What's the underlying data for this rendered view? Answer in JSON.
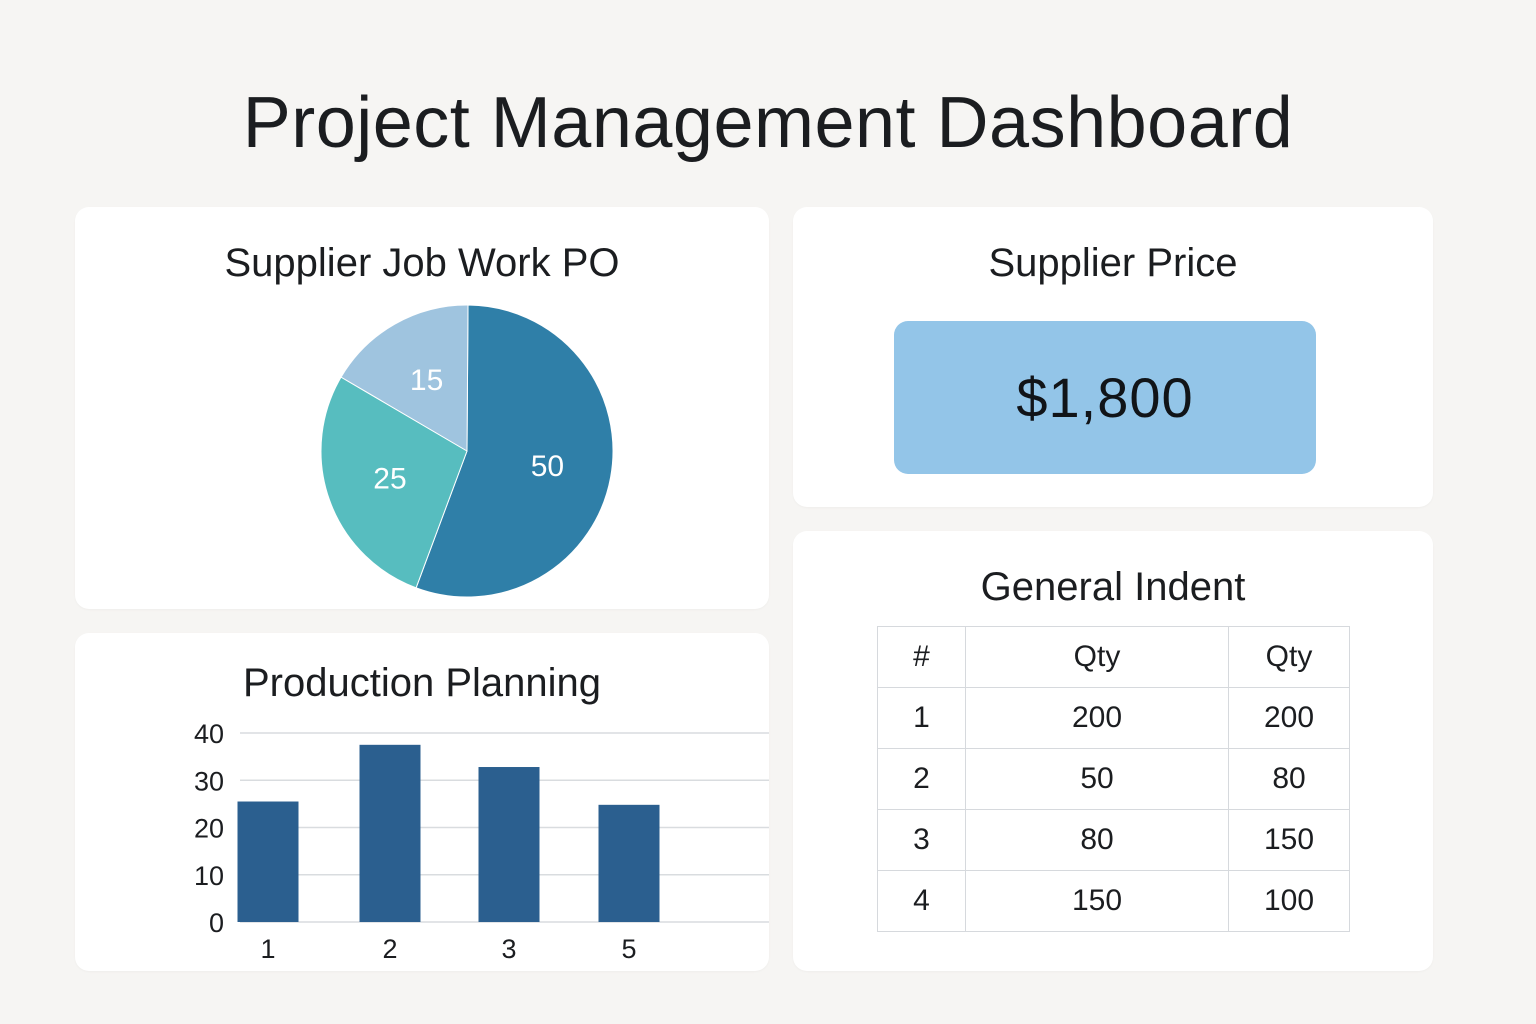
{
  "page": {
    "title": "Project Management Dashboard"
  },
  "colors": {
    "background": "#f6f5f3",
    "card": "#ffffff",
    "pie_dark": "#2f7fa8",
    "pie_teal": "#57bdbf",
    "pie_light": "#9fc4df",
    "bar": "#2b5f8f",
    "price_box": "#93c5e8",
    "grid": "#d9dcdf"
  },
  "pie_card": {
    "title": "Supplier Job Work PO"
  },
  "price_card": {
    "title": "Supplier Price",
    "value": "$1,800"
  },
  "bar_card": {
    "title": "Production Planning"
  },
  "table_card": {
    "title": "General Indent",
    "headers": [
      "#",
      "Qty",
      "Qty"
    ],
    "rows": [
      [
        "1",
        "200",
        "200"
      ],
      [
        "2",
        "50",
        "80"
      ],
      [
        "3",
        "80",
        "150"
      ],
      [
        "4",
        "150",
        "100"
      ]
    ]
  },
  "chart_data": [
    {
      "type": "pie",
      "title": "Supplier Job Work PO",
      "values": [
        50,
        25,
        15
      ],
      "labels": [
        "50",
        "25",
        "15"
      ],
      "colors": [
        "#2f7fa8",
        "#57bdbf",
        "#9fc4df"
      ]
    },
    {
      "type": "bar",
      "title": "Production Planning",
      "categories": [
        "1",
        "2",
        "3",
        "5"
      ],
      "values": [
        25.5,
        37.5,
        32.8,
        24.8
      ],
      "ylim": [
        0,
        40
      ],
      "yticks": [
        "0",
        "10",
        "20",
        "30",
        "40"
      ],
      "xlabel": "",
      "ylabel": "",
      "grid": true
    }
  ]
}
